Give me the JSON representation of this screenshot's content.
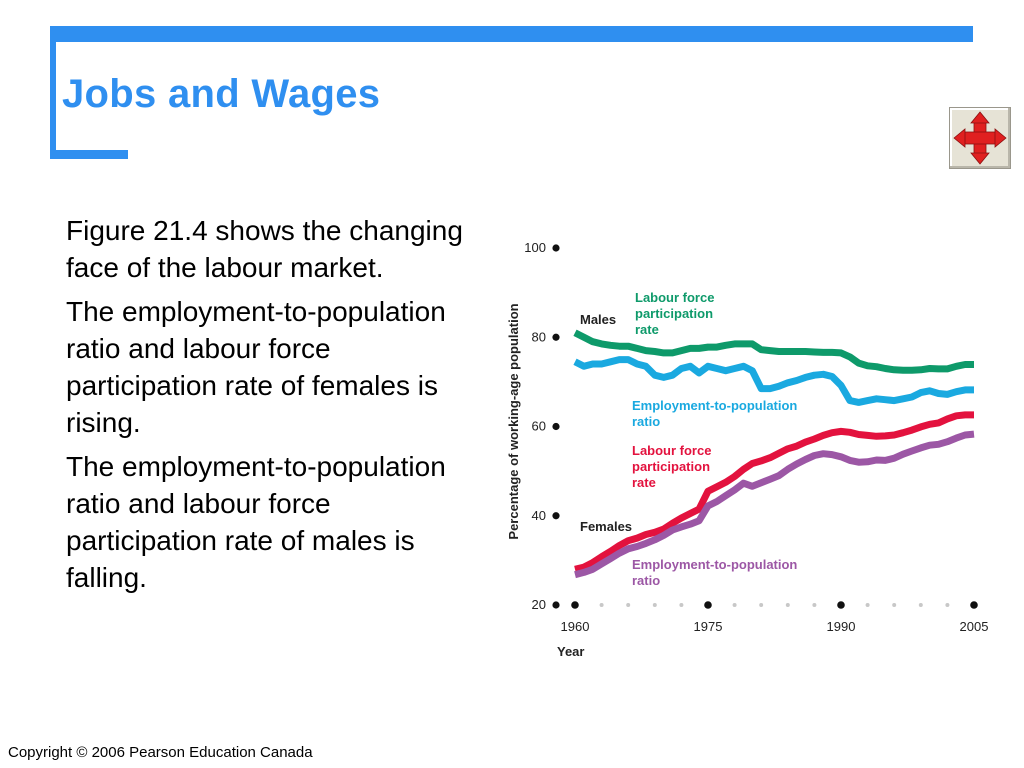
{
  "slide": {
    "title": "Jobs and Wages",
    "copyright": "Copyright © 2006 Pearson Education Canada",
    "paragraphs": [
      "Figure 21.4 shows the changing face of the labour market.",
      "The employment-to-population ratio and labour force participation rate of females is rising.",
      "The employment-to-population ratio and labour force participation rate of males is falling."
    ],
    "accent_color": "#2f8ff0",
    "nav_icon": "four-way-arrows-icon"
  },
  "chart_data": {
    "type": "line",
    "ylabel": "Percentage of working-age population",
    "xlabel": "Year",
    "ylim": [
      20,
      100
    ],
    "xlim": [
      1960,
      2005
    ],
    "yticks": [
      "20",
      "40",
      "60",
      "80",
      "100"
    ],
    "xticks": [
      "1960",
      "1975",
      "1990",
      "2005"
    ],
    "group_labels": {
      "males": "Males",
      "females": "Females"
    },
    "series": [
      {
        "name": "Labour force participation rate",
        "group": "Males",
        "color": "#0e9a6a",
        "x": [
          1960,
          1961,
          1962,
          1963,
          1964,
          1965,
          1966,
          1967,
          1968,
          1969,
          1970,
          1971,
          1972,
          1973,
          1974,
          1975,
          1976,
          1977,
          1978,
          1979,
          1980,
          1981,
          1982,
          1983,
          1984,
          1985,
          1986,
          1987,
          1988,
          1989,
          1990,
          1991,
          1992,
          1993,
          1994,
          1995,
          1996,
          1997,
          1998,
          1999,
          2000,
          2001,
          2002,
          2003,
          2004,
          2005
        ],
        "values": [
          81,
          80,
          79,
          78.5,
          78.2,
          78,
          78,
          77.5,
          77,
          76.8,
          76.5,
          76.5,
          77,
          77.5,
          77.5,
          77.8,
          77.8,
          78.2,
          78.5,
          78.5,
          78.5,
          77.2,
          77,
          76.8,
          76.8,
          76.8,
          76.8,
          76.7,
          76.6,
          76.6,
          76.5,
          75.6,
          74.2,
          73.6,
          73.4,
          73,
          72.7,
          72.6,
          72.6,
          72.7,
          73,
          72.9,
          72.9,
          73.5,
          73.9,
          73.9
        ]
      },
      {
        "name": "Employment-to-population ratio",
        "group": "Males",
        "color": "#1aa9e0",
        "x": [
          1960,
          1961,
          1962,
          1963,
          1964,
          1965,
          1966,
          1967,
          1968,
          1969,
          1970,
          1971,
          1972,
          1973,
          1974,
          1975,
          1976,
          1977,
          1978,
          1979,
          1980,
          1981,
          1982,
          1983,
          1984,
          1985,
          1986,
          1987,
          1988,
          1989,
          1990,
          1991,
          1992,
          1993,
          1994,
          1995,
          1996,
          1997,
          1998,
          1999,
          2000,
          2001,
          2002,
          2003,
          2004,
          2005
        ],
        "values": [
          74.5,
          73.5,
          74,
          74,
          74.5,
          75,
          75,
          74,
          73.5,
          71.5,
          71,
          71.5,
          73,
          73.5,
          72,
          73.5,
          73,
          72.5,
          73,
          73.5,
          72.5,
          68.5,
          68.5,
          69,
          69.8,
          70.3,
          71,
          71.5,
          71.7,
          71.2,
          69.2,
          65.8,
          65.4,
          65.8,
          66.2,
          66,
          65.8,
          66.2,
          66.6,
          67.6,
          68,
          67.4,
          67.2,
          67.8,
          68.2,
          68.2
        ]
      },
      {
        "name": "Labour force participation rate",
        "group": "Females",
        "color": "#e3123e",
        "x": [
          1960,
          1961,
          1962,
          1963,
          1964,
          1965,
          1966,
          1967,
          1968,
          1969,
          1970,
          1971,
          1972,
          1973,
          1974,
          1975,
          1976,
          1977,
          1978,
          1979,
          1980,
          1981,
          1982,
          1983,
          1984,
          1985,
          1986,
          1987,
          1988,
          1989,
          1990,
          1991,
          1992,
          1993,
          1994,
          1995,
          1996,
          1997,
          1998,
          1999,
          2000,
          2001,
          2002,
          2003,
          2004,
          2005
        ],
        "values": [
          28,
          28.5,
          29.5,
          30.8,
          32,
          33.3,
          34.4,
          35,
          35.8,
          36.3,
          37,
          38.3,
          39.5,
          40.5,
          41.5,
          45.5,
          46.5,
          47.5,
          48.8,
          50.4,
          51.7,
          52.3,
          53,
          54,
          55,
          55.6,
          56.5,
          57.2,
          58,
          58.6,
          58.9,
          58.7,
          58.2,
          58,
          57.8,
          57.9,
          58.1,
          58.6,
          59.2,
          59.9,
          60.5,
          60.8,
          61.7,
          62.4,
          62.6,
          62.6
        ]
      },
      {
        "name": "Employment-to-population ratio",
        "group": "Females",
        "color": "#9c57a5",
        "x": [
          1960,
          1961,
          1962,
          1963,
          1964,
          1965,
          1966,
          1967,
          1968,
          1969,
          1970,
          1971,
          1972,
          1973,
          1974,
          1975,
          1976,
          1977,
          1978,
          1979,
          1980,
          1981,
          1982,
          1983,
          1984,
          1985,
          1986,
          1987,
          1988,
          1989,
          1990,
          1991,
          1992,
          1993,
          1994,
          1995,
          1996,
          1997,
          1998,
          1999,
          2000,
          2001,
          2002,
          2003,
          2004,
          2005
        ],
        "values": [
          26.8,
          27.3,
          28,
          29.2,
          30.4,
          31.6,
          32.6,
          33.1,
          33.8,
          34.6,
          35.6,
          36.8,
          37.5,
          38.1,
          38.9,
          42.2,
          43.2,
          44.5,
          45.8,
          47.3,
          46.6,
          47.4,
          48.2,
          49,
          50.4,
          51.6,
          52.6,
          53.5,
          53.9,
          53.7,
          53.2,
          52.4,
          52,
          52.1,
          52.5,
          52.4,
          52.9,
          53.8,
          54.5,
          55.2,
          55.8,
          56,
          56.6,
          57.4,
          58.1,
          58.3
        ]
      }
    ],
    "series_labels": [
      {
        "lines": [
          "Labour force",
          "participation",
          "rate"
        ],
        "color": "#0e9a6a"
      },
      {
        "lines": [
          "Employment-to-population",
          "ratio"
        ],
        "color": "#1aa9e0"
      },
      {
        "lines": [
          "Labour force",
          "participation",
          "rate"
        ],
        "color": "#e3123e"
      },
      {
        "lines": [
          "Employment-to-population",
          "ratio"
        ],
        "color": "#9c57a5"
      }
    ],
    "grid": false
  }
}
